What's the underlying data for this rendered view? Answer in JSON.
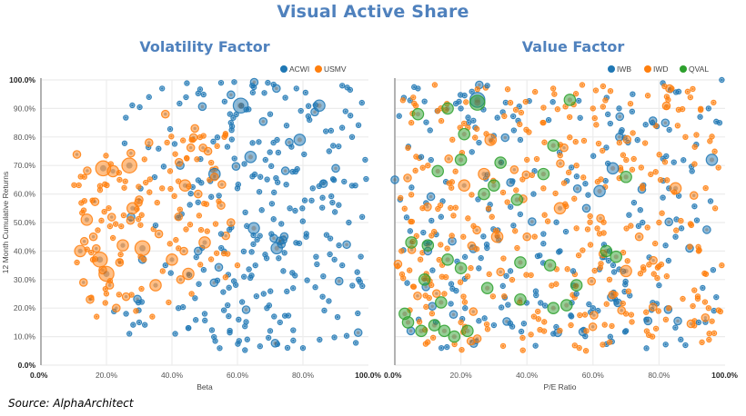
{
  "title": "Visual Active Share",
  "source": "Source: AlphaArchitect",
  "colors": {
    "title": "#4f81bd",
    "blue": "#1f77b4",
    "orange": "#ff7f0e",
    "green": "#2ca02c",
    "grid": "#ececec",
    "axis": "#999999"
  },
  "chart_data": [
    {
      "type": "scatter",
      "title": "Volatility Factor",
      "xlabel": "Beta",
      "ylabel": "12 Month Cumulative Returns",
      "xlim": [
        0,
        100
      ],
      "ylim": [
        0,
        100
      ],
      "x_ticks": [
        "0.0%",
        "20.0%",
        "40.0%",
        "60.0%",
        "80.0%",
        "100.0%"
      ],
      "y_ticks": [
        "0.0%",
        "10.0%",
        "20.0%",
        "30.0%",
        "40.0%",
        "50.0%",
        "60.0%",
        "70.0%",
        "80.0%",
        "90.0%",
        "100.0%"
      ],
      "grid": true,
      "legend_position": "top-right",
      "series": [
        {
          "name": "ACWI",
          "color": "#1f77b4",
          "note": "Broad cloud of ~300 holdings spanning beta 20%-100%, returns 5%-100%; size = weight class (1 small .. 4 large)",
          "points": [
            [
              61,
              91,
              4
            ],
            [
              65,
              48,
              3
            ],
            [
              53,
              67,
              3
            ],
            [
              79,
              79,
              3
            ],
            [
              85,
              91,
              3
            ],
            [
              72,
              41,
              3
            ],
            [
              64,
              73,
              3
            ],
            [
              48,
              40,
              2
            ],
            [
              90,
              69,
              2
            ],
            [
              33,
              94,
              1
            ],
            [
              37,
              97,
              1
            ],
            [
              55,
              99,
              1
            ],
            [
              58,
              85,
              1
            ],
            [
              70,
              88,
              1
            ],
            [
              78,
              97,
              1
            ],
            [
              92,
              98,
              1
            ],
            [
              95,
              80,
              1
            ],
            [
              99,
              72,
              1
            ],
            [
              88,
              75,
              1
            ],
            [
              83,
              62,
              1
            ],
            [
              76,
              55,
              1
            ],
            [
              66,
              44,
              1
            ],
            [
              62,
              31,
              1
            ],
            [
              57,
              21,
              1
            ],
            [
              45,
              13,
              1
            ],
            [
              41,
              11,
              1
            ],
            [
              38,
              35,
              1
            ],
            [
              35,
              49,
              1
            ],
            [
              30,
              15,
              1
            ],
            [
              26,
              18,
              1
            ],
            [
              27,
              11,
              1
            ],
            [
              42,
              20,
              1
            ],
            [
              50,
              18,
              1
            ],
            [
              68,
              25,
              1
            ],
            [
              73,
              15,
              1
            ],
            [
              80,
              6,
              1
            ],
            [
              86,
              24,
              1
            ],
            [
              92,
              35,
              1
            ],
            [
              97,
              30,
              1
            ],
            [
              94,
              50,
              1
            ],
            [
              89,
              57,
              1
            ],
            [
              81,
              45,
              1
            ],
            [
              74,
              33,
              1
            ],
            [
              69,
              20,
              1
            ],
            [
              63,
              9,
              1
            ],
            [
              55,
              46,
              1
            ],
            [
              52,
              59,
              1
            ],
            [
              60,
              62,
              1
            ],
            [
              67,
              66,
              1
            ],
            [
              71,
              78,
              1
            ],
            [
              75,
              84,
              1
            ],
            [
              82,
              86,
              1
            ],
            [
              87,
              82,
              1
            ],
            [
              93,
              89,
              1
            ],
            [
              98,
              92,
              1
            ],
            [
              96,
              63,
              1
            ],
            [
              91,
              42,
              1
            ],
            [
              84,
              38,
              1
            ],
            [
              77,
              27,
              1
            ],
            [
              70,
              12,
              1
            ]
          ]
        },
        {
          "name": "USMV",
          "color": "#ff7f0e",
          "note": "~150 holdings concentrated at beta 10%-60%, returns 15%-85%; size = weight class",
          "points": [
            [
              19,
              69,
              4
            ],
            [
              22,
              68,
              3
            ],
            [
              27,
              70,
              4
            ],
            [
              12,
              40,
              3
            ],
            [
              18,
              37,
              4
            ],
            [
              31,
              41,
              4
            ],
            [
              35,
              28,
              3
            ],
            [
              14,
              51,
              3
            ],
            [
              20,
              32,
              4
            ],
            [
              25,
              42,
              3
            ],
            [
              28,
              55,
              3
            ],
            [
              40,
              37,
              3
            ],
            [
              45,
              32,
              3
            ],
            [
              50,
              43,
              3
            ],
            [
              44,
              63,
              3
            ],
            [
              33,
              78,
              2
            ],
            [
              38,
              88,
              2
            ],
            [
              47,
              83,
              2
            ],
            [
              51,
              75,
              2
            ],
            [
              55,
              56,
              2
            ],
            [
              58,
              50,
              2
            ],
            [
              15,
              23,
              2
            ],
            [
              23,
              20,
              2
            ],
            [
              26,
              24,
              2
            ],
            [
              30,
              58,
              2
            ],
            [
              36,
              46,
              2
            ],
            [
              42,
              52,
              2
            ],
            [
              48,
              60,
              2
            ],
            [
              53,
              66,
              2
            ],
            [
              16,
              45,
              2
            ],
            [
              21,
              28,
              2
            ],
            [
              24,
              36,
              2
            ],
            [
              13,
              29,
              2
            ],
            [
              17,
              17,
              1
            ],
            [
              29,
              19,
              1
            ],
            [
              34,
              17,
              1
            ],
            [
              39,
              22,
              1
            ],
            [
              46,
              25,
              1
            ],
            [
              52,
              71,
              1
            ],
            [
              56,
              80,
              1
            ],
            [
              60,
              35,
              1
            ],
            [
              24,
              65,
              1
            ],
            [
              32,
              64,
              1
            ],
            [
              37,
              62,
              1
            ],
            [
              41,
              74,
              1
            ],
            [
              46,
              79,
              1
            ],
            [
              57,
              39,
              1
            ],
            [
              11,
              36,
              1
            ]
          ]
        }
      ]
    },
    {
      "type": "scatter",
      "title": "Value Factor",
      "xlabel": "P/E Ratio",
      "ylabel": "",
      "xlim": [
        0,
        100
      ],
      "ylim": [
        0,
        100
      ],
      "x_ticks": [
        "0.0%",
        "20.0%",
        "40.0%",
        "60.0%",
        "80.0%",
        "100.0%"
      ],
      "y_ticks": [],
      "grid": true,
      "legend_position": "top-right",
      "series": [
        {
          "name": "IWB",
          "color": "#1f77b4",
          "note": "~250 holdings spread across P/E 0%-100%, returns 5%-100%",
          "points": [
            [
              25,
              93,
              4
            ],
            [
              66,
              69,
              3
            ],
            [
              96,
              72,
              3
            ],
            [
              62,
              61,
              3
            ],
            [
              58,
              55,
              2
            ],
            [
              10,
              40,
              2
            ],
            [
              68,
              80,
              2
            ],
            [
              30,
              14,
              1
            ],
            [
              0,
              65,
              2
            ],
            [
              7,
              97,
              1
            ],
            [
              8,
              73,
              1
            ],
            [
              14,
              52,
              1
            ],
            [
              20,
              90,
              1
            ],
            [
              28,
              98,
              1
            ],
            [
              38,
              79,
              1
            ],
            [
              45,
              46,
              1
            ],
            [
              50,
              40,
              1
            ],
            [
              54,
              33,
              1
            ],
            [
              60,
              20,
              1
            ],
            [
              70,
              12,
              1
            ],
            [
              75,
              50,
              1
            ],
            [
              80,
              28,
              1
            ],
            [
              85,
              45,
              1
            ],
            [
              90,
              68,
              1
            ],
            [
              95,
              90,
              1
            ],
            [
              99,
              100,
              1
            ],
            [
              92,
              15,
              1
            ],
            [
              88,
              7,
              1
            ],
            [
              83,
              62,
              1
            ],
            [
              78,
              85,
              1
            ],
            [
              72,
              95,
              1
            ],
            [
              65,
              40,
              1
            ],
            [
              55,
              25,
              1
            ],
            [
              48,
              11,
              1
            ],
            [
              42,
              60,
              1
            ],
            [
              35,
              33,
              1
            ]
          ]
        },
        {
          "name": "IWD",
          "color": "#ff7f0e",
          "note": "~350 holdings spread across P/E 0%-100%, returns 5%-100%",
          "points": [
            [
              29,
              79,
              3
            ],
            [
              21,
              63,
              3
            ],
            [
              27,
              67,
              3
            ],
            [
              31,
              45,
              3
            ],
            [
              50,
              55,
              3
            ],
            [
              70,
              33,
              3
            ],
            [
              85,
              62,
              3
            ],
            [
              74,
              45,
              2
            ],
            [
              40,
              45,
              2
            ],
            [
              63,
              39,
              2
            ],
            [
              45,
              85,
              1
            ],
            [
              55,
              70,
              1
            ],
            [
              60,
              90,
              1
            ],
            [
              65,
              30,
              1
            ],
            [
              70,
              18,
              1
            ],
            [
              75,
              62,
              1
            ],
            [
              80,
              50,
              1
            ],
            [
              88,
              80,
              1
            ],
            [
              92,
              40,
              1
            ],
            [
              97,
              55,
              1
            ],
            [
              99,
              35,
              1
            ],
            [
              95,
              20,
              1
            ],
            [
              20,
              15,
              1
            ],
            [
              15,
              25,
              1
            ],
            [
              10,
              70,
              1
            ],
            [
              5,
              85,
              1
            ],
            [
              2,
              40,
              1
            ],
            [
              35,
              92,
              1
            ],
            [
              40,
              72,
              1
            ],
            [
              45,
              62,
              1
            ],
            [
              55,
              48,
              1
            ],
            [
              58,
              12,
              1
            ],
            [
              78,
              10,
              1
            ],
            [
              83,
              20,
              1
            ],
            [
              93,
              8,
              1
            ],
            [
              68,
              78,
              1
            ]
          ]
        },
        {
          "name": "QVAL",
          "color": "#2ca02c",
          "note": "~45 holdings, concentrated at P/E 0%-55%",
          "points": [
            [
              25,
              92,
              4
            ],
            [
              7,
              88,
              3
            ],
            [
              16,
              90,
              3
            ],
            [
              21,
              81,
              3
            ],
            [
              48,
              77,
              3
            ],
            [
              53,
              93,
              3
            ],
            [
              13,
              68,
              3
            ],
            [
              20,
              72,
              3
            ],
            [
              32,
              71,
              3
            ],
            [
              30,
              63,
              3
            ],
            [
              27,
              60,
              3
            ],
            [
              45,
              67,
              3
            ],
            [
              70,
              66,
              3
            ],
            [
              5,
              43,
              3
            ],
            [
              10,
              42,
              3
            ],
            [
              16,
              37,
              3
            ],
            [
              20,
              34,
              3
            ],
            [
              28,
              27,
              3
            ],
            [
              38,
              36,
              3
            ],
            [
              47,
              35,
              3
            ],
            [
              38,
              23,
              3
            ],
            [
              48,
              20,
              3
            ],
            [
              55,
              28,
              3
            ],
            [
              14,
              22,
              3
            ],
            [
              4,
              15,
              3
            ],
            [
              8,
              12,
              3
            ],
            [
              12,
              14,
              3
            ],
            [
              15,
              12,
              3
            ],
            [
              18,
              10,
              3
            ],
            [
              22,
              12,
              3
            ],
            [
              3,
              18,
              3
            ],
            [
              9,
              30,
              3
            ],
            [
              64,
              40,
              3
            ],
            [
              67,
              38,
              3
            ],
            [
              52,
              21,
              3
            ],
            [
              37,
              58,
              3
            ]
          ]
        }
      ]
    }
  ]
}
